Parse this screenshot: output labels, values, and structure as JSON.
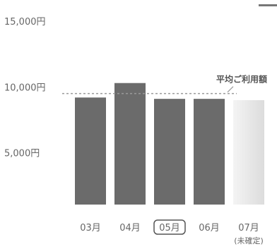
{
  "chart_data": {
    "type": "bar",
    "categories": [
      "03月",
      "04月",
      "05月",
      "06月",
      "07月"
    ],
    "category_sublabels": [
      "",
      "",
      "",
      "",
      "(未確定)"
    ],
    "selected_category": "05月",
    "values": [
      9200,
      10300,
      9100,
      9100,
      9000
    ],
    "estimated": [
      false,
      false,
      false,
      false,
      true
    ],
    "y_ticks": [
      {
        "value": 15000,
        "label": "15,000円"
      },
      {
        "value": 10000,
        "label": "10,000円"
      },
      {
        "value": 5000,
        "label": "5,000円"
      }
    ],
    "ylim": [
      0,
      15000
    ],
    "average": 9500,
    "average_label": "平均ご利用額",
    "title": "",
    "xlabel": "",
    "ylabel": "",
    "grid": false,
    "colors": {
      "bar": "#6b6b6b",
      "bar_estimated": "#efefef",
      "average_line": "#9a9a9a",
      "text": "#666666"
    }
  }
}
